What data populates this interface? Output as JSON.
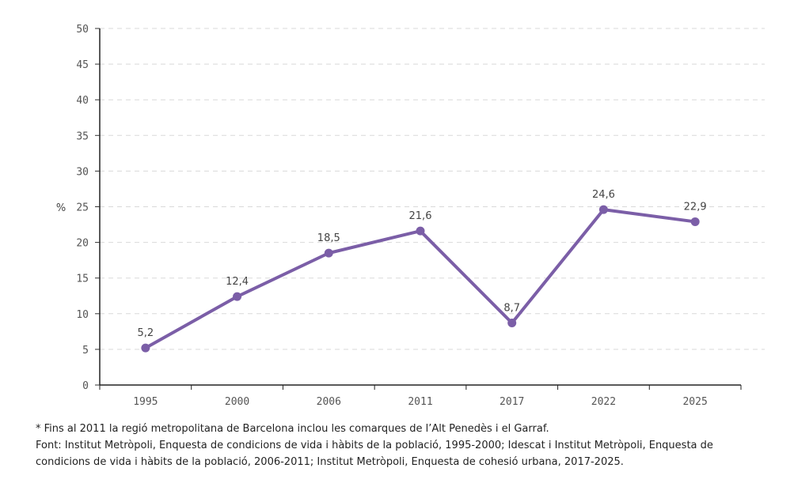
{
  "chart_data": {
    "type": "line",
    "title": "",
    "xlabel": "",
    "ylabel": "%",
    "categories": [
      "1995",
      "2000",
      "2006",
      "2011",
      "2017",
      "2022",
      "2025"
    ],
    "series": [
      {
        "name": "",
        "values": [
          5.2,
          12.4,
          18.5,
          21.6,
          8.7,
          24.6,
          22.9
        ],
        "labels": [
          "5,2",
          "12,4",
          "18,5",
          "21,6",
          "8,7",
          "24,6",
          "22,9"
        ],
        "color": "#7b5ea7"
      }
    ],
    "ylim": [
      0,
      50
    ],
    "yticks": [
      0,
      5,
      10,
      15,
      20,
      25,
      30,
      35,
      40,
      45,
      50
    ],
    "grid": true,
    "legend": "none"
  },
  "notes": {
    "footnote": "* Fins al 2011 la regió metropolitana de Barcelona inclou les comarques de l’Alt Penedès i el Garraf.",
    "source_line1": "Font: Institut Metròpoli, Enquesta de condicions de vida i hàbits de la població, 1995-2000; Idescat i Institut Metròpoli, Enquesta de",
    "source_line2": "condicions de vida i hàbits de la població, 2006-2011; Institut Metròpoli, Enquesta de cohesió urbana, 2017-2025."
  }
}
